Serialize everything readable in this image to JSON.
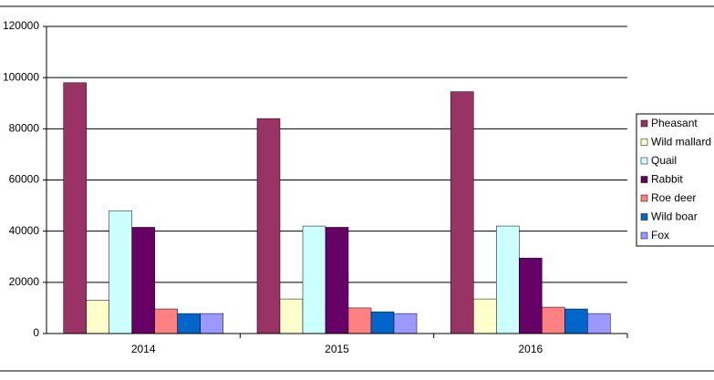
{
  "chart_data": {
    "type": "bar",
    "categories": [
      "2014",
      "2015",
      "2016"
    ],
    "series": [
      {
        "name": "Pheasant",
        "color": "#993366",
        "values": [
          98000,
          84000,
          94500
        ]
      },
      {
        "name": "Wild mallard",
        "color": "#ffffcc",
        "values": [
          13000,
          13500,
          13500
        ]
      },
      {
        "name": "Quail",
        "color": "#ccffff",
        "values": [
          48000,
          42000,
          42000
        ]
      },
      {
        "name": "Rabbit",
        "color": "#660066",
        "values": [
          41500,
          41500,
          29500
        ]
      },
      {
        "name": "Roe deer",
        "color": "#ff8080",
        "values": [
          9600,
          10000,
          10300
        ]
      },
      {
        "name": "Wild boar",
        "color": "#0066cc",
        "values": [
          7800,
          8500,
          9600
        ]
      },
      {
        "name": "Fox",
        "color": "#9999ff",
        "values": [
          7800,
          7800,
          7800
        ]
      }
    ],
    "ylim": [
      0,
      120000
    ],
    "yticks": [
      0,
      20000,
      40000,
      60000,
      80000,
      100000,
      120000
    ],
    "grid": true,
    "legend": "right"
  }
}
